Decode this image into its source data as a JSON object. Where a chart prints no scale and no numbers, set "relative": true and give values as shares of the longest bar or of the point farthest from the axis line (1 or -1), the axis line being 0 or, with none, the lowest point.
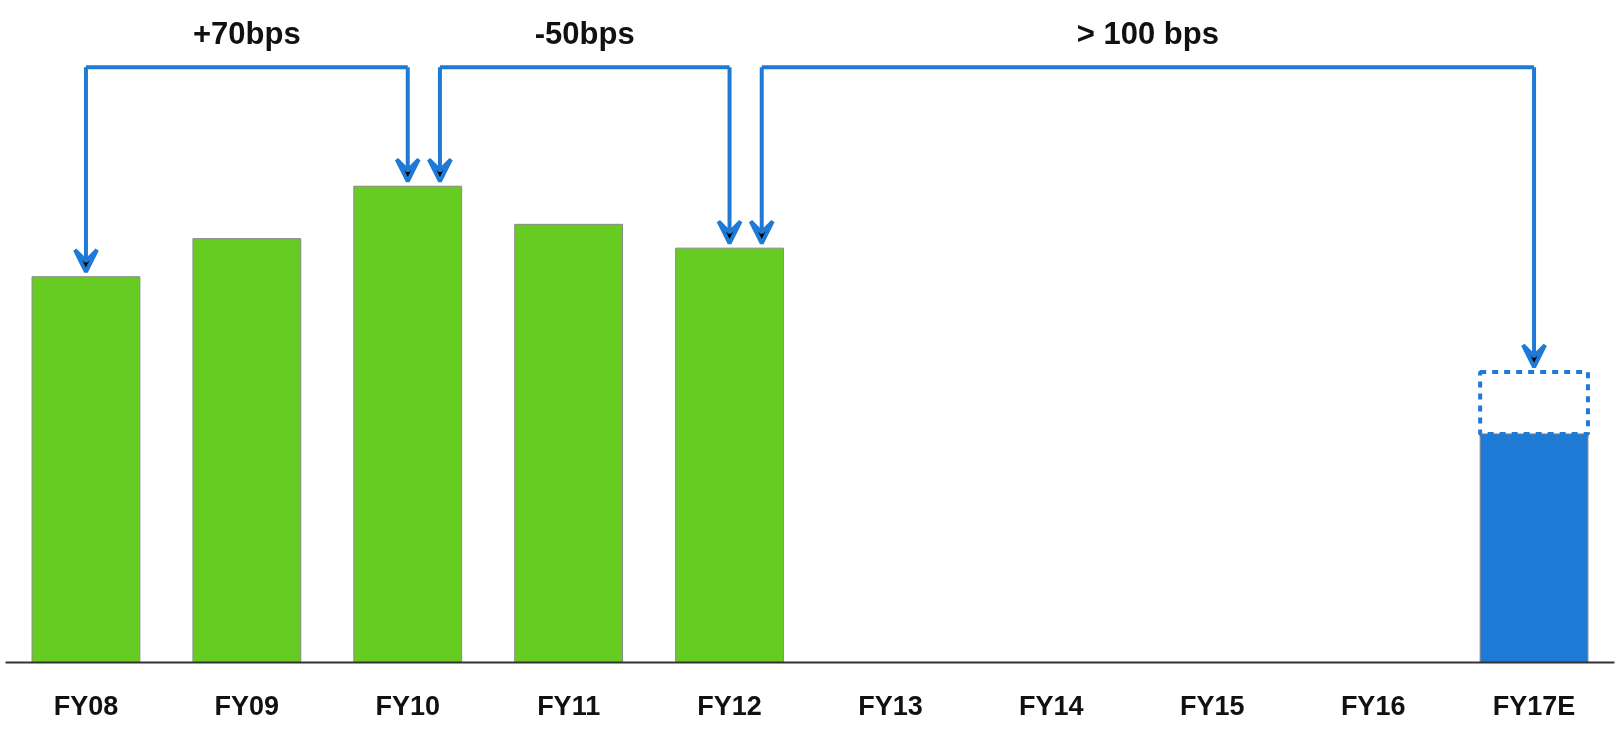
{
  "chart_data": {
    "type": "bar",
    "relative": true,
    "stacked": true,
    "grid": false,
    "categories": [
      "FY08",
      "FY09",
      "FY10",
      "FY11",
      "FY12",
      "FY13",
      "FY14",
      "FY15",
      "FY16",
      "FY17E"
    ],
    "series": [
      {
        "colors": [
          "#66cc22",
          "#66cc22",
          "#66cc22",
          "#66cc22",
          "#66cc22",
          null,
          null,
          null,
          null,
          "#1f7ad6"
        ],
        "values": [
          0.81,
          0.89,
          1.0,
          0.92,
          0.87,
          null,
          null,
          null,
          null,
          0.48
        ]
      },
      {
        "color": "#1f7ad6",
        "line_style": "dashed",
        "values": [
          null,
          null,
          null,
          null,
          null,
          null,
          null,
          null,
          null,
          0.13
        ]
      }
    ],
    "annotations": [
      "+70bps",
      "-50bps",
      "> 100 bps"
    ]
  }
}
